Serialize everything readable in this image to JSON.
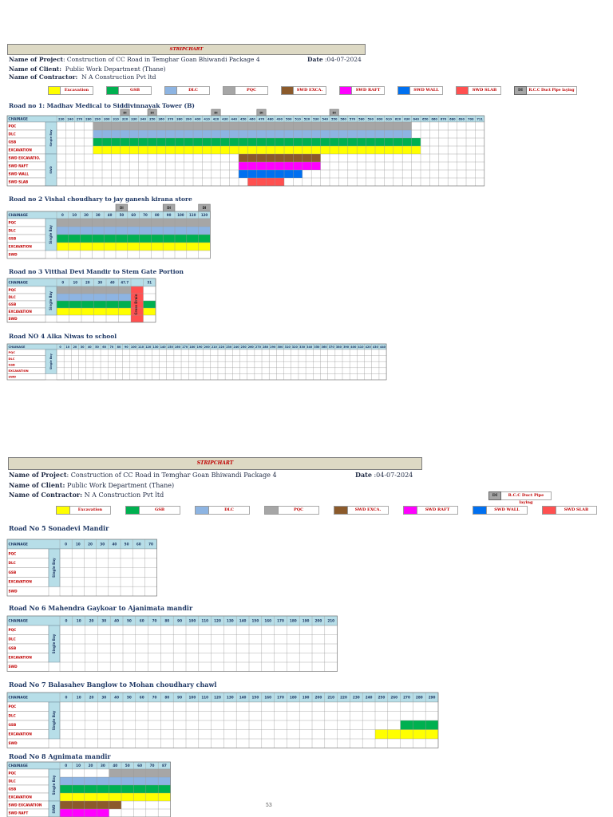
{
  "sheets": [
    {
      "header": "STRIPCHART",
      "project_label": "Name of Project",
      "project": ": Construction of CC Road in Temghar Goan Bhiwandi Package 4",
      "date_label": "Date",
      "date": " :04-07-2024",
      "client_label": "Name of Client:",
      "client": "Public Work Department (Thane)",
      "contractor_label": "Name of Contractor:",
      "contractor": "N A Construction Pvt ltd"
    },
    {
      "header": "STRIPCHART",
      "project_label": "Name of Project",
      "project": ": Construction of CC Road in Temghar Goan Bhiwandi Package 4",
      "date_label": "Date",
      "date": " :04-07-2024",
      "client_label": "Name of Client:",
      "client": "Public Work Department (Thane)",
      "contractor_label": "Name of Contractor:",
      "contractor": "N A Construction Pvt ltd"
    }
  ],
  "legend1": [
    {
      "label": "Excavation",
      "color": "#ffff00"
    },
    {
      "label": "GSB",
      "color": "#00b050"
    },
    {
      "label": "DLC",
      "color": "#8db4e2"
    },
    {
      "label": "PQC",
      "color": "#a6a6a6"
    },
    {
      "label": "SWD EXCA.",
      "color": "#8b5a2b"
    },
    {
      "label": "SWD RAFT",
      "color": "#ff00ff"
    },
    {
      "label": "SWD WALL",
      "color": "#0070f0"
    },
    {
      "label": "SWD SLAB",
      "color": "#ff5050"
    }
  ],
  "legend_di": {
    "code": "DI",
    "label": "R.C.C Duct Pipe laying"
  },
  "legend2": [
    {
      "label": "Excavation",
      "color": "#ffff00"
    },
    {
      "label": "GSB",
      "color": "#00b050"
    },
    {
      "label": "DLC",
      "color": "#8db4e2"
    },
    {
      "label": "PQC",
      "color": "#a6a6a6"
    },
    {
      "label": "SWD EXCA.",
      "color": "#8b5a2b"
    },
    {
      "label": "SWD RAFT",
      "color": "#ff00ff"
    },
    {
      "label": "SWD WALL",
      "color": "#0070f0"
    },
    {
      "label": "SWD SLAB",
      "color": "#ff5050"
    }
  ],
  "colors": {
    "header_blue": "#b7dee8",
    "row_label_red": "#c00000",
    "excavation": "#ffff00",
    "gsb": "#00b050",
    "dlc": "#8db4e2",
    "pqc": "#a6a6a6",
    "swd_exca": "#8b5a2b",
    "swd_raft": "#ff00ff",
    "swd_wall": "#0070f0",
    "swd_slab": "#ff5050"
  },
  "roads": [
    {
      "title": "Road no 1: Madhav Medical to Siddivinnayak Tower (B)",
      "chainage": [
        "230",
        "240",
        "270",
        "280",
        "290",
        "300",
        "310",
        "320",
        "330",
        "340",
        "350",
        "360",
        "370",
        "380",
        "390",
        "400",
        "410",
        "420",
        "430",
        "440",
        "450",
        "460",
        "470",
        "480",
        "490",
        "500",
        "510",
        "520",
        "530",
        "540",
        "550",
        "560",
        "570",
        "580",
        "590",
        "600",
        "610",
        "620",
        "630",
        "640",
        "650",
        "660",
        "670",
        "680",
        "690",
        "700",
        "711"
      ],
      "di_markers": [
        7,
        10,
        17,
        22,
        30
      ],
      "di_label": "DI",
      "rows": [
        "PQC",
        "DLC",
        "GSB",
        "EXCAVATION",
        "SWD EXCAVATIO.",
        "SWD RAFT",
        "SWD WALL",
        "SWD SLAB"
      ],
      "groups": [
        {
          "label": "Single Bay",
          "from": 0,
          "to": 3
        },
        {
          "label": "SWD",
          "from": 4,
          "to": 7
        }
      ],
      "fills": [
        {
          "row": 0,
          "from": 4,
          "to": 38,
          "color": "#a6a6a6"
        },
        {
          "row": 1,
          "from": 4,
          "to": 38,
          "color": "#8db4e2"
        },
        {
          "row": 2,
          "from": 4,
          "to": 39,
          "color": "#00b050"
        },
        {
          "row": 3,
          "from": 4,
          "to": 39,
          "color": "#ffff00"
        },
        {
          "row": 4,
          "from": 20,
          "to": 28,
          "color": "#8b5a2b"
        },
        {
          "row": 5,
          "from": 20,
          "to": 28,
          "color": "#ff00ff"
        },
        {
          "row": 6,
          "from": 20,
          "to": 26,
          "color": "#0070f0"
        },
        {
          "row": 7,
          "from": 21,
          "to": 24,
          "color": "#ff5050"
        }
      ]
    },
    {
      "title": "Road no 2 Vishal choudhary to jay ganesh kirana store",
      "chainage": [
        "0",
        "10",
        "20",
        "30",
        "40",
        "50",
        "60",
        "70",
        "80",
        "90",
        "100",
        "110",
        "120"
      ],
      "di_markers": [
        5,
        9,
        12
      ],
      "di_label": "DI",
      "rows": [
        "PQC",
        "DLC",
        "GSB",
        "EXCAVATION",
        "SWD"
      ],
      "groups": [
        {
          "label": "Single Bay",
          "from": 0,
          "to": 3
        }
      ],
      "fills": [
        {
          "row": 0,
          "from": 0,
          "to": 12,
          "color": "#a6a6a6"
        },
        {
          "row": 1,
          "from": 0,
          "to": 12,
          "color": "#8db4e2"
        },
        {
          "row": 2,
          "from": 0,
          "to": 12,
          "color": "#00b050"
        },
        {
          "row": 3,
          "from": 0,
          "to": 12,
          "color": "#ffff00"
        }
      ]
    },
    {
      "title": "Road no 3 Vitthal Devi Mandir to Stem Gate Portion",
      "chainage": [
        "0",
        "10",
        "20",
        "30",
        "40",
        "47.7",
        "",
        "51"
      ],
      "di_markers": [],
      "di_label": "DI",
      "rows": [
        "PQC",
        "DLC",
        "GSB",
        "EXCAVATION",
        "SWD"
      ],
      "groups": [
        {
          "label": "Single Bay",
          "from": 0,
          "to": 3
        }
      ],
      "fills": [
        {
          "row": 0,
          "from": 0,
          "to": 5,
          "color": "#a6a6a6"
        },
        {
          "row": 1,
          "from": 0,
          "to": 5,
          "color": "#8db4e2"
        },
        {
          "row": 2,
          "from": 0,
          "to": 7,
          "color": "#00b050"
        },
        {
          "row": 3,
          "from": 0,
          "to": 7,
          "color": "#ffff00"
        },
        {
          "row": 0,
          "from": 6,
          "to": 6,
          "color": "#ff5050"
        },
        {
          "row": 1,
          "from": 6,
          "to": 6,
          "color": "#ff5050"
        },
        {
          "row": 2,
          "from": 6,
          "to": 6,
          "color": "#ff5050"
        },
        {
          "row": 3,
          "from": 6,
          "to": 6,
          "color": "#ff5050"
        },
        {
          "row": 4,
          "from": 6,
          "to": 6,
          "color": "#ff5050"
        }
      ],
      "vertical_note": {
        "col": 6,
        "text": "Cross Drain"
      }
    },
    {
      "title": "Road  NO 4 Alka Niwas to school",
      "chainage": [
        "0",
        "10",
        "20",
        "30",
        "40",
        "50",
        "60",
        "70",
        "80",
        "90",
        "100",
        "110",
        "120",
        "130",
        "140",
        "150",
        "160",
        "170",
        "180",
        "190",
        "200",
        "210",
        "220",
        "230",
        "240",
        "250",
        "260",
        "270",
        "280",
        "290",
        "300",
        "310",
        "320",
        "330",
        "340",
        "350",
        "360",
        "370",
        "380",
        "390",
        "400",
        "410",
        "420",
        "430",
        "440"
      ],
      "di_markers": [],
      "di_label": "DI",
      "rows": [
        "PQC",
        "DLC",
        "GSB",
        "EXCAVATION",
        "SWD"
      ],
      "groups": [
        {
          "label": "Single Bay",
          "from": 0,
          "to": 3
        }
      ],
      "fills": []
    },
    {
      "title": "Road  No 5 Sonadevi Mandir",
      "chainage": [
        "0",
        "10",
        "20",
        "30",
        "40",
        "50",
        "60",
        "70"
      ],
      "di_markers": [],
      "di_label": "DI",
      "rows": [
        "PQC",
        "DLC",
        "GSB",
        "EXCAVATION",
        "SWD"
      ],
      "groups": [
        {
          "label": "Single Bay",
          "from": 0,
          "to": 3
        }
      ],
      "fills": []
    },
    {
      "title": "Road  No 6 Mahendra Gaykoar to Ajanimata mandir",
      "chainage": [
        "0",
        "10",
        "20",
        "30",
        "40",
        "50",
        "60",
        "70",
        "80",
        "90",
        "100",
        "110",
        "120",
        "130",
        "140",
        "150",
        "160",
        "170",
        "180",
        "190",
        "200",
        "210"
      ],
      "di_markers": [],
      "di_label": "DI",
      "rows": [
        "PQC",
        "DLC",
        "GSB",
        "EXCAVATION",
        "SWD"
      ],
      "groups": [
        {
          "label": "Single Bay",
          "from": 0,
          "to": 3
        }
      ],
      "fills": []
    },
    {
      "title": "Road No 7 Balasahev Banglow to Mohan choudhary chawl",
      "chainage": [
        "0",
        "10",
        "20",
        "30",
        "40",
        "50",
        "60",
        "70",
        "80",
        "90",
        "100",
        "110",
        "120",
        "130",
        "140",
        "150",
        "160",
        "170",
        "180",
        "190",
        "200",
        "210",
        "220",
        "230",
        "240",
        "250",
        "260",
        "270",
        "280",
        "290"
      ],
      "di_markers": [],
      "di_label": "DI",
      "rows": [
        "PQC",
        "DLC",
        "GSB",
        "EXCAVATION",
        "SWD"
      ],
      "groups": [
        {
          "label": "Single Bay",
          "from": 0,
          "to": 3
        }
      ],
      "fills": [
        {
          "row": 2,
          "from": 27,
          "to": 29,
          "color": "#00b050"
        },
        {
          "row": 3,
          "from": 25,
          "to": 29,
          "color": "#ffff00"
        }
      ]
    },
    {
      "title": "Road  No 8 Agnimata mandir",
      "chainage": [
        "0",
        "10",
        "20",
        "30",
        "40",
        "50",
        "60",
        "70",
        "87"
      ],
      "di_markers": [],
      "di_label": "DI",
      "rows": [
        "PQC",
        "DLC",
        "GSB",
        "EXCAVATION",
        "SWD EXCAVATION",
        "SWD RAFT"
      ],
      "groups": [
        {
          "label": "Single Bay",
          "from": 0,
          "to": 3
        },
        {
          "label": "SWD",
          "from": 4,
          "to": 5
        }
      ],
      "fills": [
        {
          "row": 0,
          "from": 4,
          "to": 8,
          "color": "#a6a6a6"
        },
        {
          "row": 1,
          "from": 0,
          "to": 8,
          "color": "#8db4e2"
        },
        {
          "row": 2,
          "from": 0,
          "to": 8,
          "color": "#00b050"
        },
        {
          "row": 3,
          "from": 0,
          "to": 8,
          "color": "#ffff00"
        },
        {
          "row": 4,
          "from": 0,
          "to": 4,
          "color": "#8b5a2b"
        },
        {
          "row": 5,
          "from": 0,
          "to": 3,
          "color": "#ff00ff"
        }
      ]
    }
  ],
  "page_number": "53"
}
